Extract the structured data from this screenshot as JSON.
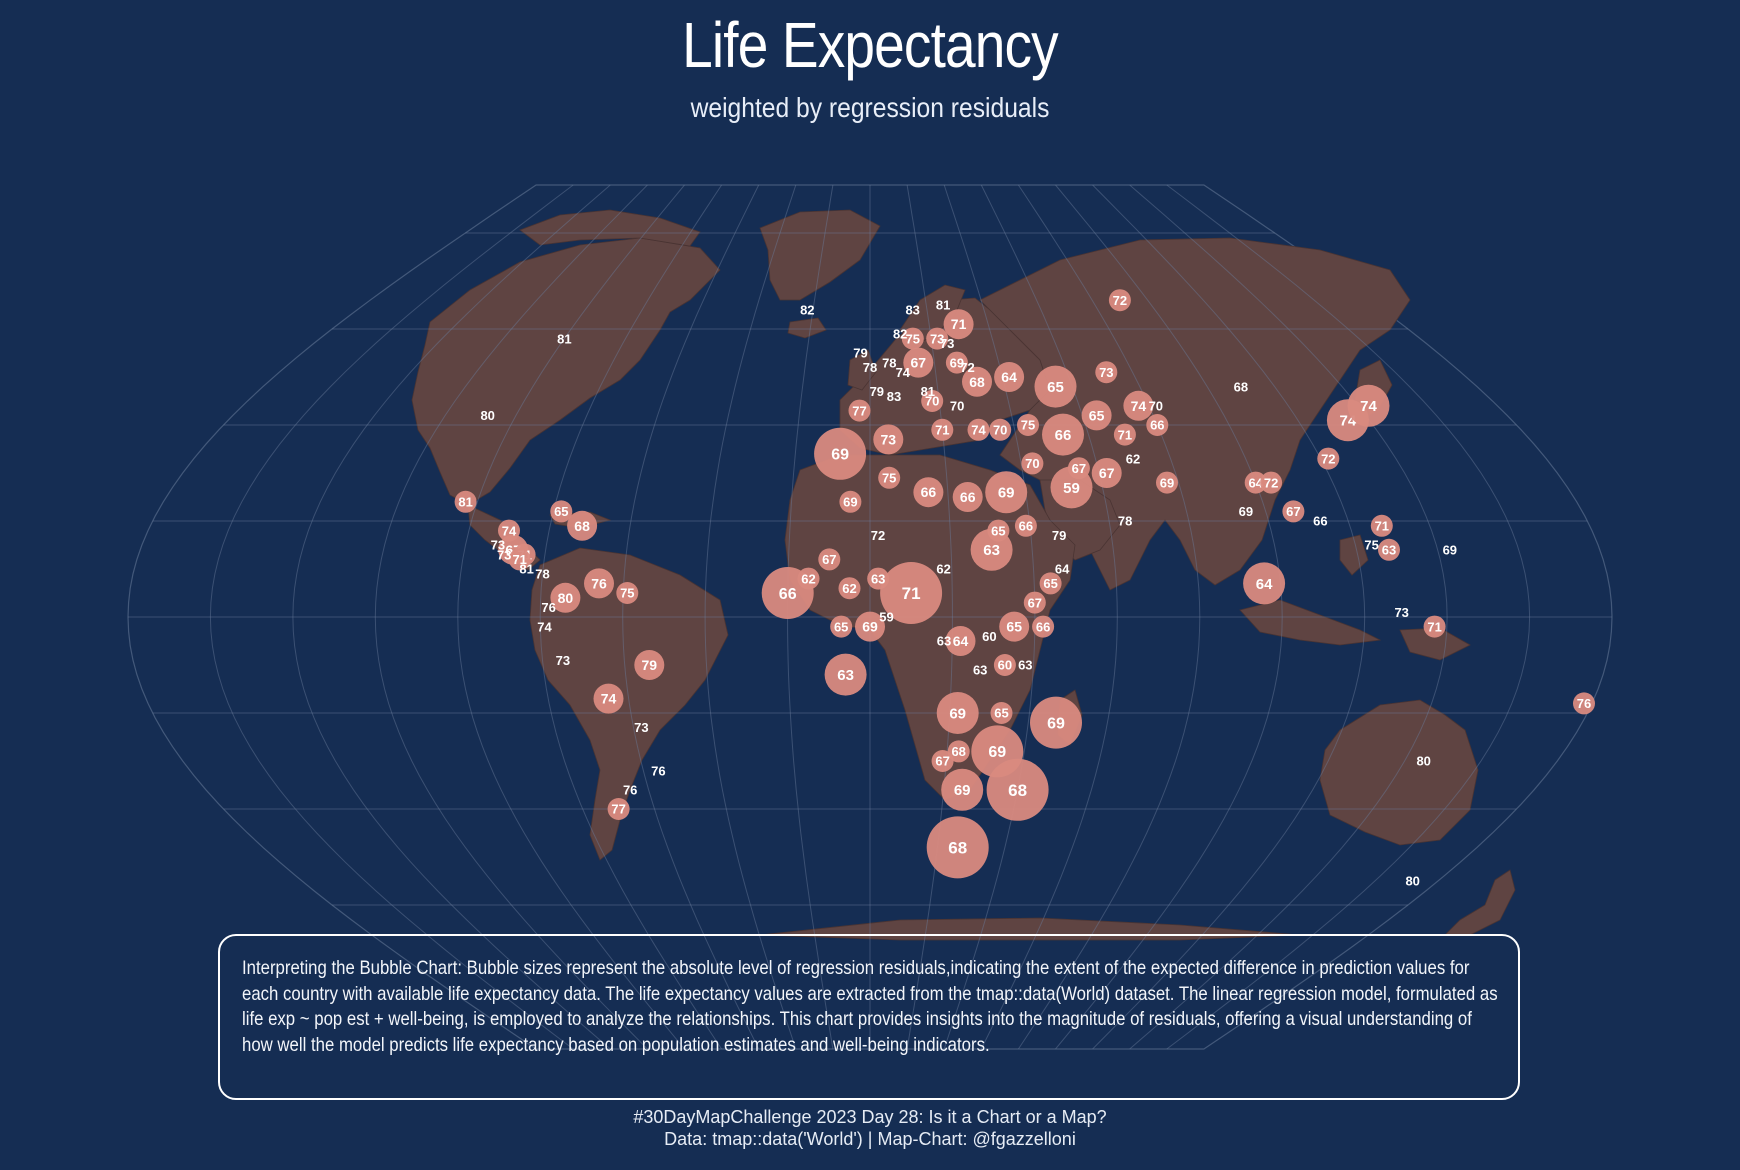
{
  "title": "Life Expectancy",
  "subtitle": "weighted by regression residuals",
  "note": "Interpreting the Bubble Chart: Bubble sizes represent the absolute level of regression residuals,indicating the extent of the expected difference in prediction values for each country with available life expectancy data. The life expectancy values are extracted from the tmap::data(World) dataset. The linear regression model, formulated as life exp ~ pop est + well-being, is employed to analyze the relationships. This chart provides insights into the magnitude of residuals, offering a visual understanding of how well the model predicts life expectancy based on population estimates and well-being indicators.",
  "footer": {
    "line1": "#30DayMapChallenge 2023 Day 28: Is it a Chart or a Map?",
    "line2": "Data: tmap::data('World') | Map-Chart: @fgazzelloni"
  },
  "colors": {
    "background": "#152d53",
    "land": "#5f4442",
    "graticule": "#6a7d9b",
    "bubble": "#d98a80",
    "text": "#ffffff"
  },
  "chart_data": {
    "type": "bubble-map",
    "value_label": "life expectancy (years)",
    "size_meaning": "absolute regression residual",
    "points": [
      {
        "lon": -100,
        "lat": 58,
        "value": 81,
        "size": 0
      },
      {
        "lon": -108,
        "lat": 42,
        "value": 80,
        "size": 0
      },
      {
        "lon": -22,
        "lat": 64,
        "value": 82,
        "size": 0
      },
      {
        "lon": -103,
        "lat": 24,
        "value": 81,
        "size": 1
      },
      {
        "lon": -90,
        "lat": 18,
        "value": 74,
        "size": 1
      },
      {
        "lon": -92,
        "lat": 15,
        "value": 73,
        "size": 0
      },
      {
        "lon": -88,
        "lat": 14,
        "value": 67,
        "size": 2
      },
      {
        "lon": -90,
        "lat": 13,
        "value": 73,
        "size": 0
      },
      {
        "lon": -85,
        "lat": 13,
        "value": 71,
        "size": 1
      },
      {
        "lon": -78,
        "lat": 22,
        "value": 65,
        "size": 1
      },
      {
        "lon": -72,
        "lat": 19,
        "value": 68,
        "size": 2
      },
      {
        "lon": -86,
        "lat": 12,
        "value": 71,
        "size": 1
      },
      {
        "lon": -84,
        "lat": 10,
        "value": 81,
        "size": 0
      },
      {
        "lon": -80,
        "lat": 9,
        "value": 78,
        "size": 0
      },
      {
        "lon": -66,
        "lat": 7,
        "value": 76,
        "size": 2
      },
      {
        "lon": -74,
        "lat": 4,
        "value": 80,
        "size": 2
      },
      {
        "lon": -59,
        "lat": 5,
        "value": 75,
        "size": 1
      },
      {
        "lon": -78,
        "lat": 2,
        "value": 76,
        "size": 0
      },
      {
        "lon": -79,
        "lat": -2,
        "value": 74,
        "size": 0
      },
      {
        "lon": -75,
        "lat": -9,
        "value": 73,
        "size": 0
      },
      {
        "lon": -54,
        "lat": -10,
        "value": 79,
        "size": 2
      },
      {
        "lon": -65,
        "lat": -17,
        "value": 74,
        "size": 2
      },
      {
        "lon": -58,
        "lat": -23,
        "value": 73,
        "size": 0
      },
      {
        "lon": -56,
        "lat": -32,
        "value": 76,
        "size": 0
      },
      {
        "lon": -65,
        "lat": -36,
        "value": 76,
        "size": 0
      },
      {
        "lon": -70,
        "lat": -40,
        "value": 77,
        "size": 1
      },
      {
        "lon": 15,
        "lat": 64,
        "value": 83,
        "size": 0
      },
      {
        "lon": 26,
        "lat": 65,
        "value": 81,
        "size": 0
      },
      {
        "lon": 10,
        "lat": 59,
        "value": 82,
        "size": 0
      },
      {
        "lon": 14,
        "lat": 58,
        "value": 75,
        "size": 1
      },
      {
        "lon": 22,
        "lat": 58,
        "value": 73,
        "size": 1
      },
      {
        "lon": 25,
        "lat": 57,
        "value": 73,
        "size": 0
      },
      {
        "lon": 30,
        "lat": 61,
        "value": 71,
        "size": 2
      },
      {
        "lon": 27,
        "lat": 53,
        "value": 69,
        "size": 1
      },
      {
        "lon": 30,
        "lat": 52,
        "value": 72,
        "size": 0
      },
      {
        "lon": -3,
        "lat": 55,
        "value": 79,
        "size": 0
      },
      {
        "lon": 0,
        "lat": 52,
        "value": 78,
        "size": 0
      },
      {
        "lon": 6,
        "lat": 53,
        "value": 78,
        "size": 0
      },
      {
        "lon": 10,
        "lat": 51,
        "value": 74,
        "size": 0
      },
      {
        "lon": 15,
        "lat": 53,
        "value": 67,
        "size": 2
      },
      {
        "lon": 2,
        "lat": 47,
        "value": 79,
        "size": 0
      },
      {
        "lon": 7,
        "lat": 46,
        "value": 83,
        "size": 0
      },
      {
        "lon": -3,
        "lat": 43,
        "value": 77,
        "size": 1
      },
      {
        "lon": 17,
        "lat": 47,
        "value": 81,
        "size": 0
      },
      {
        "lon": 18,
        "lat": 45,
        "value": 70,
        "size": 1
      },
      {
        "lon": 25,
        "lat": 44,
        "value": 70,
        "size": 0
      },
      {
        "lon": 32,
        "lat": 49,
        "value": 68,
        "size": 2
      },
      {
        "lon": 42,
        "lat": 50,
        "value": 64,
        "size": 2
      },
      {
        "lon": 55,
        "lat": 48,
        "value": 65,
        "size": 3
      },
      {
        "lon": -8,
        "lat": 34,
        "value": 69,
        "size": 4
      },
      {
        "lon": 5,
        "lat": 37,
        "value": 73,
        "size": 2
      },
      {
        "lon": 20,
        "lat": 39,
        "value": 71,
        "size": 1
      },
      {
        "lon": 30,
        "lat": 39,
        "value": 74,
        "size": 1
      },
      {
        "lon": 36,
        "lat": 39,
        "value": 70,
        "size": 1
      },
      {
        "lon": 44,
        "lat": 40,
        "value": 75,
        "size": 1
      },
      {
        "lon": 53,
        "lat": 38,
        "value": 66,
        "size": 3
      },
      {
        "lon": 64,
        "lat": 42,
        "value": 65,
        "size": 2
      },
      {
        "lon": 70,
        "lat": 38,
        "value": 71,
        "size": 1
      },
      {
        "lon": 72,
        "lat": 51,
        "value": 73,
        "size": 1
      },
      {
        "lon": 77,
        "lat": 44,
        "value": 74,
        "size": 2
      },
      {
        "lon": 82,
        "lat": 44,
        "value": 70,
        "size": 0
      },
      {
        "lon": 80,
        "lat": 40,
        "value": 66,
        "size": 1
      },
      {
        "lon": 70,
        "lat": 33,
        "value": 62,
        "size": 0
      },
      {
        "lon": 77,
        "lat": 28,
        "value": 69,
        "size": 1
      },
      {
        "lon": 5,
        "lat": 29,
        "value": 75,
        "size": 1
      },
      {
        "lon": -5,
        "lat": 24,
        "value": 69,
        "size": 1
      },
      {
        "lon": 15,
        "lat": 26,
        "value": 66,
        "size": 2
      },
      {
        "lon": 25,
        "lat": 25,
        "value": 66,
        "size": 2
      },
      {
        "lon": 35,
        "lat": 26,
        "value": 69,
        "size": 3
      },
      {
        "lon": 43,
        "lat": 32,
        "value": 70,
        "size": 1
      },
      {
        "lon": 52,
        "lat": 27,
        "value": 59,
        "size": 3
      },
      {
        "lon": 55,
        "lat": 31,
        "value": 67,
        "size": 1
      },
      {
        "lon": 62,
        "lat": 30,
        "value": 67,
        "size": 2
      },
      {
        "lon": 2,
        "lat": 17,
        "value": 72,
        "size": 0
      },
      {
        "lon": -10,
        "lat": 12,
        "value": 67,
        "size": 1
      },
      {
        "lon": -15,
        "lat": 8,
        "value": 62,
        "size": 1
      },
      {
        "lon": -5,
        "lat": 6,
        "value": 62,
        "size": 1
      },
      {
        "lon": 2,
        "lat": 8,
        "value": 63,
        "size": 1
      },
      {
        "lon": 10,
        "lat": 5,
        "value": 71,
        "size": 5
      },
      {
        "lon": 18,
        "lat": 10,
        "value": 62,
        "size": 0
      },
      {
        "lon": 30,
        "lat": 14,
        "value": 63,
        "size": 3
      },
      {
        "lon": 32,
        "lat": 18,
        "value": 65,
        "size": 1
      },
      {
        "lon": 39,
        "lat": 19,
        "value": 66,
        "size": 1
      },
      {
        "lon": 47,
        "lat": 17,
        "value": 79,
        "size": 0
      },
      {
        "lon": 64,
        "lat": 20,
        "value": 78,
        "size": 0
      },
      {
        "lon": 47,
        "lat": 10,
        "value": 64,
        "size": 0
      },
      {
        "lon": 44,
        "lat": 7,
        "value": 65,
        "size": 1
      },
      {
        "lon": 40,
        "lat": 3,
        "value": 67,
        "size": 1
      },
      {
        "lon": -20,
        "lat": 5,
        "value": 66,
        "size": 4
      },
      {
        "lon": -7,
        "lat": -2,
        "value": 65,
        "size": 1
      },
      {
        "lon": 0,
        "lat": -2,
        "value": 69,
        "size": 2
      },
      {
        "lon": 4,
        "lat": 0,
        "value": 59,
        "size": 0
      },
      {
        "lon": 22,
        "lat": -5,
        "value": 64,
        "size": 2
      },
      {
        "lon": 35,
        "lat": -2,
        "value": 65,
        "size": 2
      },
      {
        "lon": 42,
        "lat": -2,
        "value": 66,
        "size": 1
      },
      {
        "lon": 29,
        "lat": -4,
        "value": 60,
        "size": 0
      },
      {
        "lon": 18,
        "lat": -5,
        "value": 63,
        "size": 0
      },
      {
        "lon": -6,
        "lat": -12,
        "value": 63,
        "size": 3
      },
      {
        "lon": 27,
        "lat": -11,
        "value": 63,
        "size": 0
      },
      {
        "lon": 33,
        "lat": -10,
        "value": 60,
        "size": 1
      },
      {
        "lon": 38,
        "lat": -10,
        "value": 63,
        "size": 0
      },
      {
        "lon": 22,
        "lat": -20,
        "value": 69,
        "size": 3
      },
      {
        "lon": 33,
        "lat": -20,
        "value": 65,
        "size": 1
      },
      {
        "lon": 47,
        "lat": -22,
        "value": 69,
        "size": 4
      },
      {
        "lon": 23,
        "lat": -28,
        "value": 68,
        "size": 1
      },
      {
        "lon": 19,
        "lat": -30,
        "value": 67,
        "size": 1
      },
      {
        "lon": 33,
        "lat": -28,
        "value": 69,
        "size": 4
      },
      {
        "lon": 25,
        "lat": -36,
        "value": 69,
        "size": 3
      },
      {
        "lon": 40,
        "lat": -36,
        "value": 68,
        "size": 5
      },
      {
        "lon": 26,
        "lat": -48,
        "value": 68,
        "size": 5
      },
      {
        "lon": 90,
        "lat": 66,
        "value": 72,
        "size": 1
      },
      {
        "lon": 110,
        "lat": 48,
        "value": 68,
        "size": 0
      },
      {
        "lon": 134,
        "lat": 41,
        "value": 74,
        "size": 3
      },
      {
        "lon": 143,
        "lat": 44,
        "value": 74,
        "size": 3
      },
      {
        "lon": 122,
        "lat": 33,
        "value": 72,
        "size": 1
      },
      {
        "lon": 100,
        "lat": 28,
        "value": 64,
        "size": 1
      },
      {
        "lon": 104,
        "lat": 28,
        "value": 72,
        "size": 1
      },
      {
        "lon": 107,
        "lat": 22,
        "value": 67,
        "size": 1
      },
      {
        "lon": 95,
        "lat": 22,
        "value": 69,
        "size": 0
      },
      {
        "lon": 113,
        "lat": 20,
        "value": 66,
        "size": 0
      },
      {
        "lon": 128,
        "lat": 19,
        "value": 71,
        "size": 1
      },
      {
        "lon": 124,
        "lat": 15,
        "value": 75,
        "size": 0
      },
      {
        "lon": 128,
        "lat": 14,
        "value": 63,
        "size": 1
      },
      {
        "lon": 143,
        "lat": 14,
        "value": 69,
        "size": 0
      },
      {
        "lon": 96,
        "lat": 7,
        "value": 64,
        "size": 3
      },
      {
        "lon": 129,
        "lat": 1,
        "value": 73,
        "size": 0
      },
      {
        "lon": 137,
        "lat": -2,
        "value": 71,
        "size": 1
      },
      {
        "lon": 145,
        "lat": -30,
        "value": 80,
        "size": 0
      },
      {
        "lon": 178,
        "lat": -18,
        "value": 76,
        "size": 1
      },
      {
        "lon": 172,
        "lat": -55,
        "value": 80,
        "size": 0
      }
    ]
  }
}
